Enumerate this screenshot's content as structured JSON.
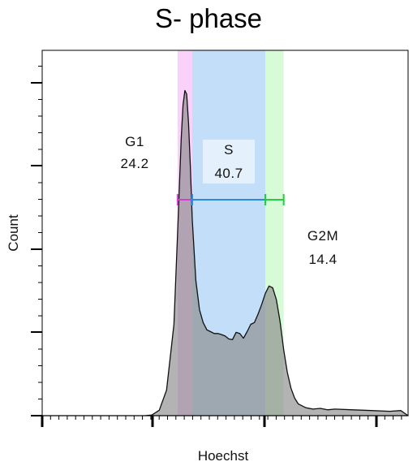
{
  "chart_data": {
    "type": "area",
    "title": "S- phase",
    "xlabel": "Hoechst",
    "ylabel": "Count",
    "xlim": [
      0,
      1000
    ],
    "ylim": [
      0,
      1000
    ],
    "grid": false,
    "colors": {
      "histogram_fill": "#8a8a8a",
      "g1": "#f07cf0",
      "s": "#88bdf2",
      "g2m": "#8cf28c",
      "s_bar": "#2a8ae0",
      "g1_bar": "#d040d0",
      "g2m_bar": "#20d040"
    },
    "gates": [
      {
        "name": "G1",
        "value": "24.2",
        "x_start": 370,
        "x_end": 410
      },
      {
        "name": "S",
        "value": "40.7",
        "x_start": 410,
        "x_end": 610
      },
      {
        "name": "G2M",
        "value": "14.4",
        "x_start": 610,
        "x_end": 660
      }
    ],
    "histogram": {
      "x": [
        0,
        280,
        300,
        320,
        340,
        360,
        370,
        380,
        385,
        390,
        395,
        400,
        405,
        410,
        420,
        430,
        440,
        450,
        460,
        470,
        480,
        490,
        500,
        510,
        520,
        530,
        540,
        550,
        560,
        570,
        580,
        590,
        600,
        610,
        620,
        630,
        640,
        650,
        660,
        670,
        680,
        690,
        700,
        720,
        740,
        760,
        780,
        800,
        850,
        900,
        950,
        980,
        1000
      ],
      "y": [
        0,
        0,
        2,
        15,
        70,
        250,
        500,
        760,
        850,
        890,
        880,
        800,
        680,
        540,
        370,
        290,
        255,
        235,
        230,
        225,
        225,
        222,
        218,
        210,
        208,
        228,
        225,
        212,
        230,
        250,
        255,
        278,
        305,
        335,
        355,
        350,
        318,
        258,
        180,
        118,
        75,
        48,
        32,
        22,
        18,
        20,
        16,
        18,
        16,
        14,
        12,
        14,
        0
      ]
    }
  }
}
